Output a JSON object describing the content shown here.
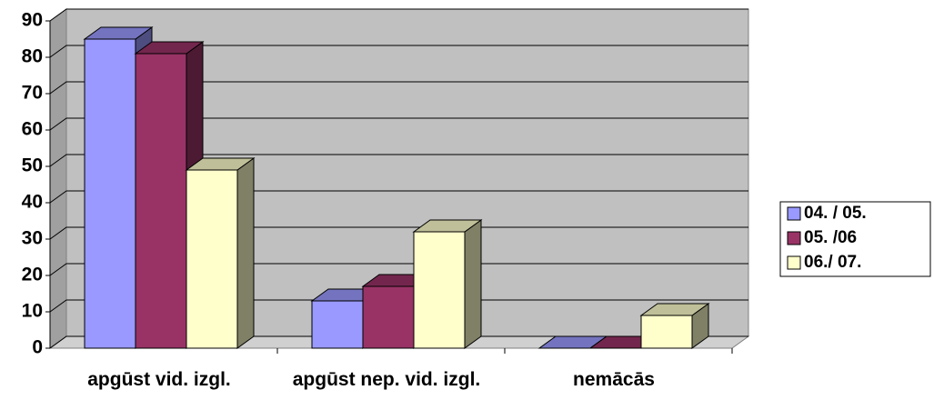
{
  "chart_data": {
    "type": "bar3d",
    "categories": [
      "apgūst vid. izgl.",
      "apgūst nep. vid. izgl.",
      "nemācās"
    ],
    "series": [
      {
        "name": "04. / 05.",
        "color": "#9999ff",
        "values": [
          85,
          13,
          0
        ]
      },
      {
        "name": "05. /06",
        "color": "#993366",
        "values": [
          81,
          17,
          0
        ]
      },
      {
        "name": "06./ 07.",
        "color": "#ffffcc",
        "values": [
          49,
          32,
          9
        ]
      }
    ],
    "ylim": [
      0,
      90
    ],
    "yticks": [
      0,
      10,
      20,
      30,
      40,
      50,
      60,
      70,
      80,
      90
    ],
    "grid": true,
    "legend": "right"
  }
}
